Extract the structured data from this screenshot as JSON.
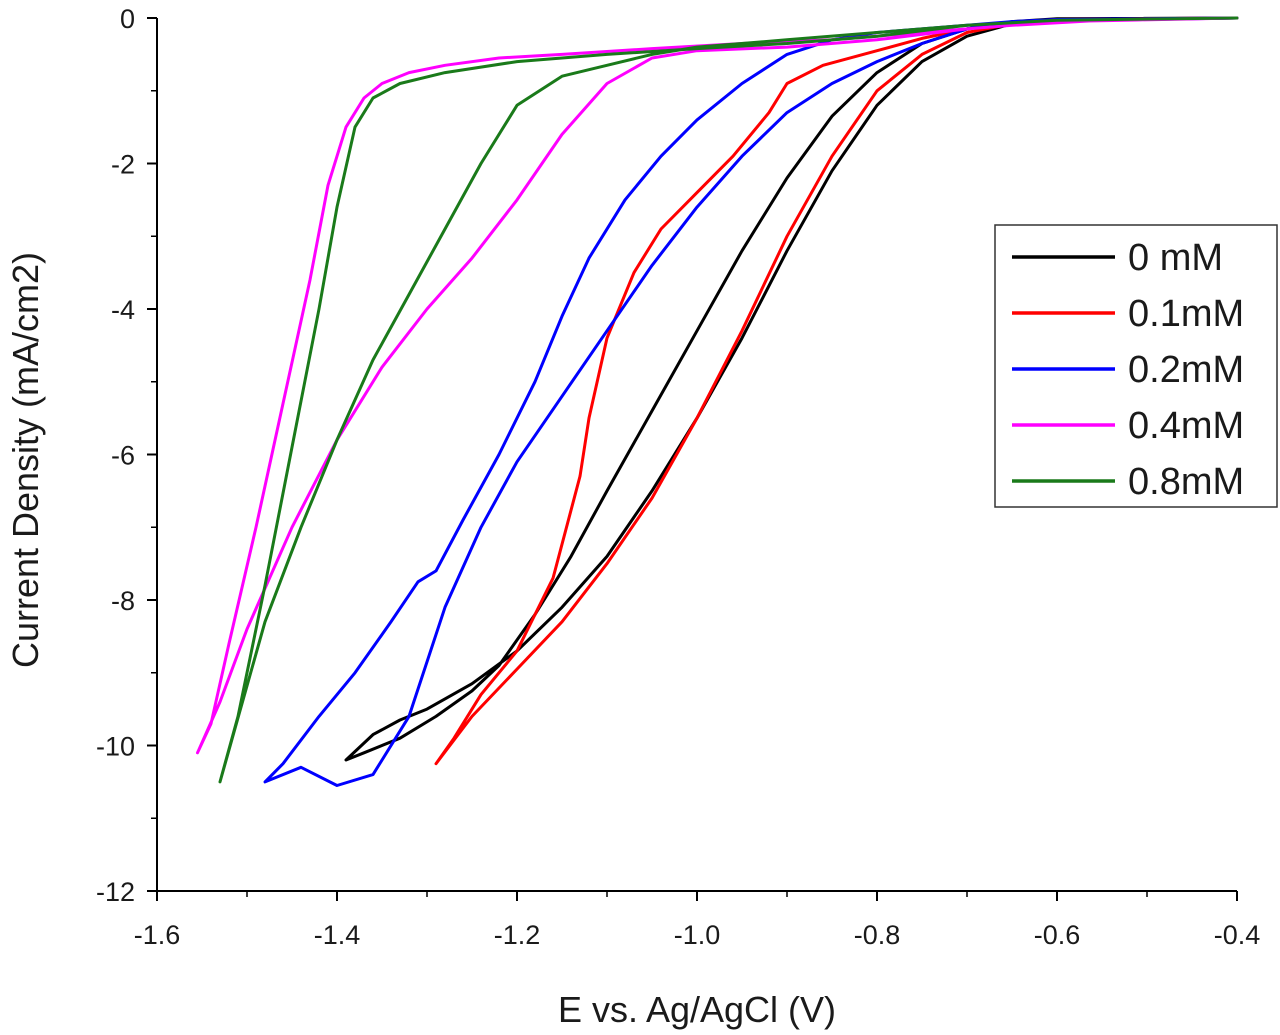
{
  "chart_data": {
    "type": "line",
    "title": "",
    "xlabel": "E vs. Ag/AgCl (V)",
    "ylabel": "Current Density (mA/cm2)",
    "xlim": [
      -1.6,
      -0.4
    ],
    "ylim": [
      -12,
      0
    ],
    "xticks": [
      -1.6,
      -1.4,
      -1.2,
      -1.0,
      -0.8,
      -0.6,
      -0.4
    ],
    "xtick_labels": [
      "-1.6",
      "-1.4",
      "-1.2",
      "-1.0",
      "-0.8",
      "-0.6",
      "-0.4"
    ],
    "yticks": [
      0,
      -2,
      -4,
      -6,
      -8,
      -10,
      -12
    ],
    "ytick_labels": [
      "0",
      "-2",
      "-4",
      "-6",
      "-8",
      "-10",
      "-12"
    ],
    "grid": false,
    "legend_position": "right",
    "series": [
      {
        "name": "0 mM",
        "color": "#000000",
        "x": [
          -0.4,
          -0.6,
          -0.65,
          -0.7,
          -0.75,
          -0.8,
          -0.85,
          -0.9,
          -0.95,
          -1.0,
          -1.05,
          -1.1,
          -1.15,
          -1.2,
          -1.25,
          -1.3,
          -1.33,
          -1.36,
          -1.39,
          -1.37,
          -1.33,
          -1.29,
          -1.25,
          -1.22,
          -1.18,
          -1.14,
          -1.1,
          -1.05,
          -1.0,
          -0.95,
          -0.9,
          -0.85,
          -0.8,
          -0.75,
          -0.7,
          -0.65,
          -0.6,
          -0.4
        ],
        "y": [
          0,
          -0.02,
          -0.08,
          -0.25,
          -0.6,
          -1.2,
          -2.1,
          -3.2,
          -4.4,
          -5.5,
          -6.5,
          -7.4,
          -8.1,
          -8.7,
          -9.15,
          -9.5,
          -9.65,
          -9.85,
          -10.2,
          -10.1,
          -9.9,
          -9.6,
          -9.25,
          -8.9,
          -8.2,
          -7.4,
          -6.5,
          -5.4,
          -4.3,
          -3.2,
          -2.2,
          -1.35,
          -0.75,
          -0.35,
          -0.15,
          -0.05,
          -0.01,
          0
        ]
      },
      {
        "name": "0.1mM",
        "color": "#ff0000",
        "x": [
          -0.4,
          -0.6,
          -0.65,
          -0.7,
          -0.75,
          -0.8,
          -0.85,
          -0.9,
          -0.95,
          -1.0,
          -1.05,
          -1.1,
          -1.15,
          -1.2,
          -1.25,
          -1.29,
          -1.27,
          -1.24,
          -1.2,
          -1.16,
          -1.13,
          -1.12,
          -1.1,
          -1.07,
          -1.04,
          -1.0,
          -0.96,
          -0.92,
          -0.9,
          -0.86,
          -0.8,
          -0.75,
          -0.7,
          -0.65,
          -0.6,
          -0.4
        ],
        "y": [
          0,
          -0.02,
          -0.08,
          -0.2,
          -0.5,
          -1.0,
          -1.9,
          -3.0,
          -4.3,
          -5.5,
          -6.6,
          -7.5,
          -8.3,
          -8.95,
          -9.6,
          -10.25,
          -9.9,
          -9.3,
          -8.7,
          -7.7,
          -6.3,
          -5.5,
          -4.4,
          -3.5,
          -2.9,
          -2.4,
          -1.9,
          -1.3,
          -0.9,
          -0.65,
          -0.45,
          -0.28,
          -0.15,
          -0.06,
          -0.02,
          0
        ]
      },
      {
        "name": "0.2mM",
        "color": "#0000ff",
        "x": [
          -0.4,
          -0.65,
          -0.7,
          -0.75,
          -0.8,
          -0.85,
          -0.9,
          -0.95,
          -1.0,
          -1.05,
          -1.1,
          -1.15,
          -1.2,
          -1.24,
          -1.28,
          -1.32,
          -1.36,
          -1.4,
          -1.44,
          -1.48,
          -1.46,
          -1.42,
          -1.38,
          -1.34,
          -1.31,
          -1.29,
          -1.26,
          -1.22,
          -1.18,
          -1.15,
          -1.12,
          -1.08,
          -1.04,
          -1.0,
          -0.95,
          -0.9,
          -0.85,
          -0.8,
          -0.75,
          -0.7,
          -0.65,
          -0.6,
          -0.4
        ],
        "y": [
          0,
          -0.05,
          -0.15,
          -0.35,
          -0.6,
          -0.9,
          -1.3,
          -1.9,
          -2.6,
          -3.4,
          -4.3,
          -5.2,
          -6.1,
          -7.0,
          -8.1,
          -9.6,
          -10.4,
          -10.55,
          -10.3,
          -10.5,
          -10.25,
          -9.6,
          -9.0,
          -8.3,
          -7.75,
          -7.6,
          -6.9,
          -6.0,
          -5.0,
          -4.1,
          -3.3,
          -2.5,
          -1.9,
          -1.4,
          -0.9,
          -0.5,
          -0.3,
          -0.2,
          -0.15,
          -0.1,
          -0.05,
          -0.02,
          0
        ]
      },
      {
        "name": "0.4mM",
        "color": "#ff00ff",
        "x": [
          -0.4,
          -0.6,
          -0.7,
          -0.8,
          -0.9,
          -1.0,
          -1.05,
          -1.1,
          -1.15,
          -1.2,
          -1.25,
          -1.3,
          -1.35,
          -1.4,
          -1.45,
          -1.5,
          -1.53,
          -1.555,
          -1.54,
          -1.52,
          -1.49,
          -1.46,
          -1.43,
          -1.41,
          -1.39,
          -1.37,
          -1.35,
          -1.32,
          -1.28,
          -1.22,
          -1.15,
          -1.05,
          -0.95,
          -0.85,
          -0.75,
          -0.65,
          -0.55,
          -0.4
        ],
        "y": [
          0,
          -0.05,
          -0.15,
          -0.3,
          -0.4,
          -0.45,
          -0.55,
          -0.9,
          -1.6,
          -2.5,
          -3.3,
          -4.0,
          -4.8,
          -5.8,
          -7.0,
          -8.4,
          -9.4,
          -10.1,
          -9.7,
          -8.6,
          -7.0,
          -5.3,
          -3.6,
          -2.3,
          -1.5,
          -1.1,
          -0.9,
          -0.75,
          -0.65,
          -0.55,
          -0.5,
          -0.42,
          -0.35,
          -0.3,
          -0.2,
          -0.1,
          -0.03,
          0
        ]
      },
      {
        "name": "0.8mM",
        "color": "#1a7a1a",
        "x": [
          -0.4,
          -0.6,
          -0.7,
          -0.8,
          -0.9,
          -1.0,
          -1.05,
          -1.1,
          -1.15,
          -1.2,
          -1.24,
          -1.28,
          -1.32,
          -1.36,
          -1.4,
          -1.44,
          -1.48,
          -1.53,
          -1.51,
          -1.48,
          -1.45,
          -1.42,
          -1.4,
          -1.38,
          -1.36,
          -1.33,
          -1.28,
          -1.2,
          -1.1,
          -1.0,
          -0.9,
          -0.8,
          -0.7,
          -0.6,
          -0.4
        ],
        "y": [
          0,
          -0.03,
          -0.1,
          -0.2,
          -0.3,
          -0.4,
          -0.5,
          -0.65,
          -0.8,
          -1.2,
          -2.0,
          -2.9,
          -3.8,
          -4.7,
          -5.8,
          -7.0,
          -8.3,
          -10.5,
          -9.6,
          -7.8,
          -5.9,
          -4.0,
          -2.6,
          -1.5,
          -1.1,
          -0.9,
          -0.75,
          -0.6,
          -0.5,
          -0.42,
          -0.35,
          -0.25,
          -0.1,
          -0.03,
          0
        ]
      }
    ]
  }
}
